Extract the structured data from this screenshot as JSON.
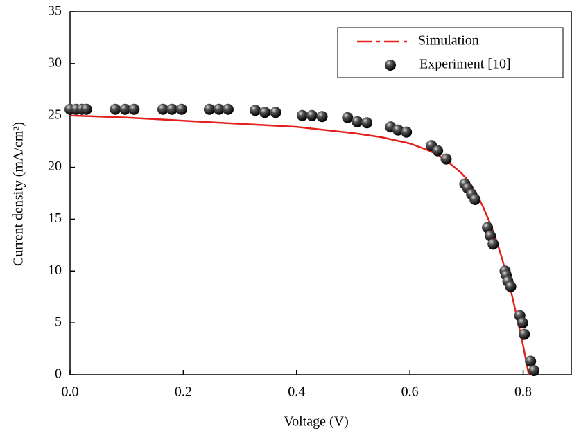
{
  "chart_data": {
    "type": "line",
    "x_label": "Voltage (V)",
    "y_label": "Current density (mA/cm²)",
    "xlim": [
      0,
      0.885
    ],
    "ylim": [
      0,
      35
    ],
    "xticks": [
      {
        "value": 0,
        "label": "0.0"
      },
      {
        "value": 0.2,
        "label": "0.2"
      },
      {
        "value": 0.4,
        "label": "0.4"
      },
      {
        "value": 0.6,
        "label": "0.6"
      },
      {
        "value": 0.8,
        "label": "0.8"
      }
    ],
    "yticks": [
      0,
      5,
      10,
      15,
      20,
      25,
      30,
      35
    ],
    "legend": "upper right",
    "series": [
      {
        "name": "Simulation",
        "color": "#e3201b",
        "mode": "line",
        "x": [
          0,
          0.1,
          0.2,
          0.3,
          0.4,
          0.5,
          0.55,
          0.6,
          0.63,
          0.65,
          0.67,
          0.69,
          0.7,
          0.71,
          0.72,
          0.73,
          0.74,
          0.75,
          0.76,
          0.77,
          0.78,
          0.79,
          0.8,
          0.805,
          0.81
        ],
        "values": [
          25.0,
          24.8,
          24.5,
          24.2,
          23.9,
          23.3,
          22.9,
          22.3,
          21.7,
          21.2,
          20.4,
          19.5,
          18.9,
          18.1,
          17.2,
          16.1,
          14.8,
          13.4,
          11.7,
          9.8,
          7.7,
          5.3,
          2.8,
          1.4,
          0
        ]
      },
      {
        "name": "Experiment [10]",
        "color": "#222222",
        "mode": "markers",
        "x": [
          0,
          0.011,
          0.021,
          0.029,
          0.08,
          0.097,
          0.113,
          0.164,
          0.18,
          0.197,
          0.246,
          0.263,
          0.279,
          0.327,
          0.344,
          0.363,
          0.41,
          0.427,
          0.445,
          0.49,
          0.507,
          0.524,
          0.566,
          0.579,
          0.594,
          0.638,
          0.649,
          0.664,
          0.697,
          0.702,
          0.709,
          0.715,
          0.737,
          0.742,
          0.747,
          0.768,
          0.77,
          0.773,
          0.778,
          0.794,
          0.799,
          0.802,
          0.813,
          0.819
        ],
        "values": [
          25.6,
          25.6,
          25.6,
          25.6,
          25.6,
          25.6,
          25.6,
          25.6,
          25.6,
          25.6,
          25.6,
          25.6,
          25.6,
          25.5,
          25.3,
          25.3,
          25.0,
          25.0,
          24.9,
          24.8,
          24.4,
          24.3,
          23.9,
          23.6,
          23.4,
          22.1,
          21.6,
          20.8,
          18.4,
          18.0,
          17.4,
          16.9,
          14.2,
          13.4,
          12.6,
          10.0,
          9.6,
          9.0,
          8.5,
          5.7,
          5.0,
          3.9,
          1.3,
          0.4
        ]
      }
    ]
  }
}
